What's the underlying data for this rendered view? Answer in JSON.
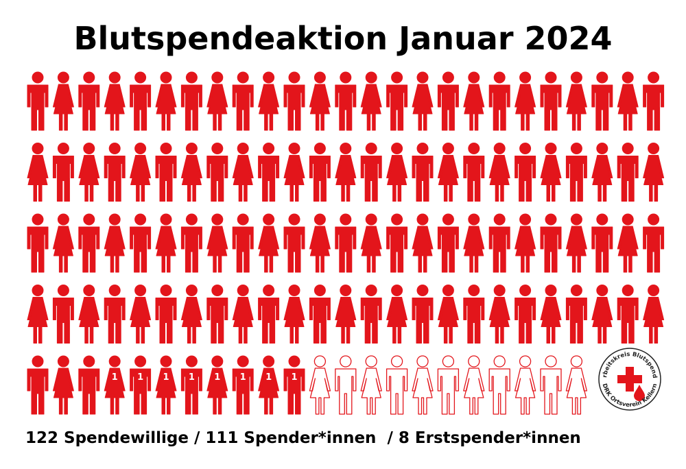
{
  "chart_data": {
    "type": "pictogram",
    "title": "Blutspendeaktion Januar 2024",
    "categories": [
      "Spendewillige",
      "Spender*innen",
      "Erstspender*innen"
    ],
    "values": [
      122,
      111,
      8
    ],
    "value_labels": [
      "122 Spendewillige",
      "111 Spender*innen",
      "8 Erstspender*innen"
    ],
    "separator": "/",
    "marker_label": "1",
    "color": "#e3151b",
    "logo": {
      "top_text": "Arbeitskreis Blutspende",
      "bottom_text": "DRK Ortsverein Kellern"
    }
  }
}
